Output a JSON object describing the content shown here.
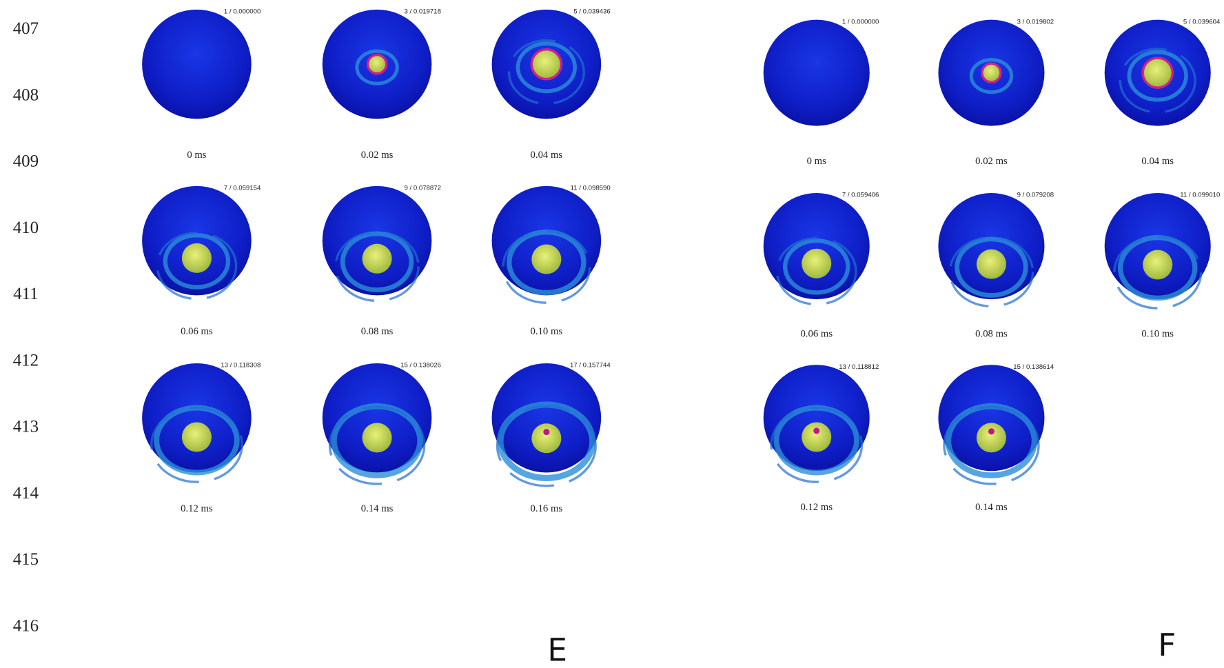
{
  "line_numbers": [
    "407",
    "408",
    "409",
    "410",
    "411",
    "412",
    "413",
    "414",
    "415",
    "416"
  ],
  "panels": [
    {
      "letter": "E",
      "frames": [
        {
          "frame_label": "1 / 0.000000",
          "time_label": "0 ms"
        },
        {
          "frame_label": "3 / 0.019718",
          "time_label": "0.02 ms"
        },
        {
          "frame_label": "5 / 0.039436",
          "time_label": "0.04 ms"
        },
        {
          "frame_label": "7 / 0.059154",
          "time_label": "0.06 ms"
        },
        {
          "frame_label": "9 / 0.078872",
          "time_label": "0.08 ms"
        },
        {
          "frame_label": "11 / 0.098590",
          "time_label": "0.10 ms"
        },
        {
          "frame_label": "13 / 0.118308",
          "time_label": "0.12 ms"
        },
        {
          "frame_label": "15 / 0.138026",
          "time_label": "0.14 ms"
        },
        {
          "frame_label": "17 / 0.157744",
          "time_label": "0.16 ms"
        }
      ]
    },
    {
      "letter": "F",
      "frames": [
        {
          "frame_label": "1 / 0.000000",
          "time_label": "0 ms"
        },
        {
          "frame_label": "3 / 0.019802",
          "time_label": "0.02 ms"
        },
        {
          "frame_label": "5 / 0.039604",
          "time_label": "0.04 ms"
        },
        {
          "frame_label": "7 / 0.059406",
          "time_label": "0.06 ms"
        },
        {
          "frame_label": "9 / 0.079208",
          "time_label": "0.08 ms"
        },
        {
          "frame_label": "11 / 0.099010",
          "time_label": "0.10 ms"
        },
        {
          "frame_label": "13 / 0.118812",
          "time_label": "0.12 ms"
        },
        {
          "frame_label": "15 / 0.138614",
          "time_label": "0.14 ms"
        }
      ]
    }
  ]
}
